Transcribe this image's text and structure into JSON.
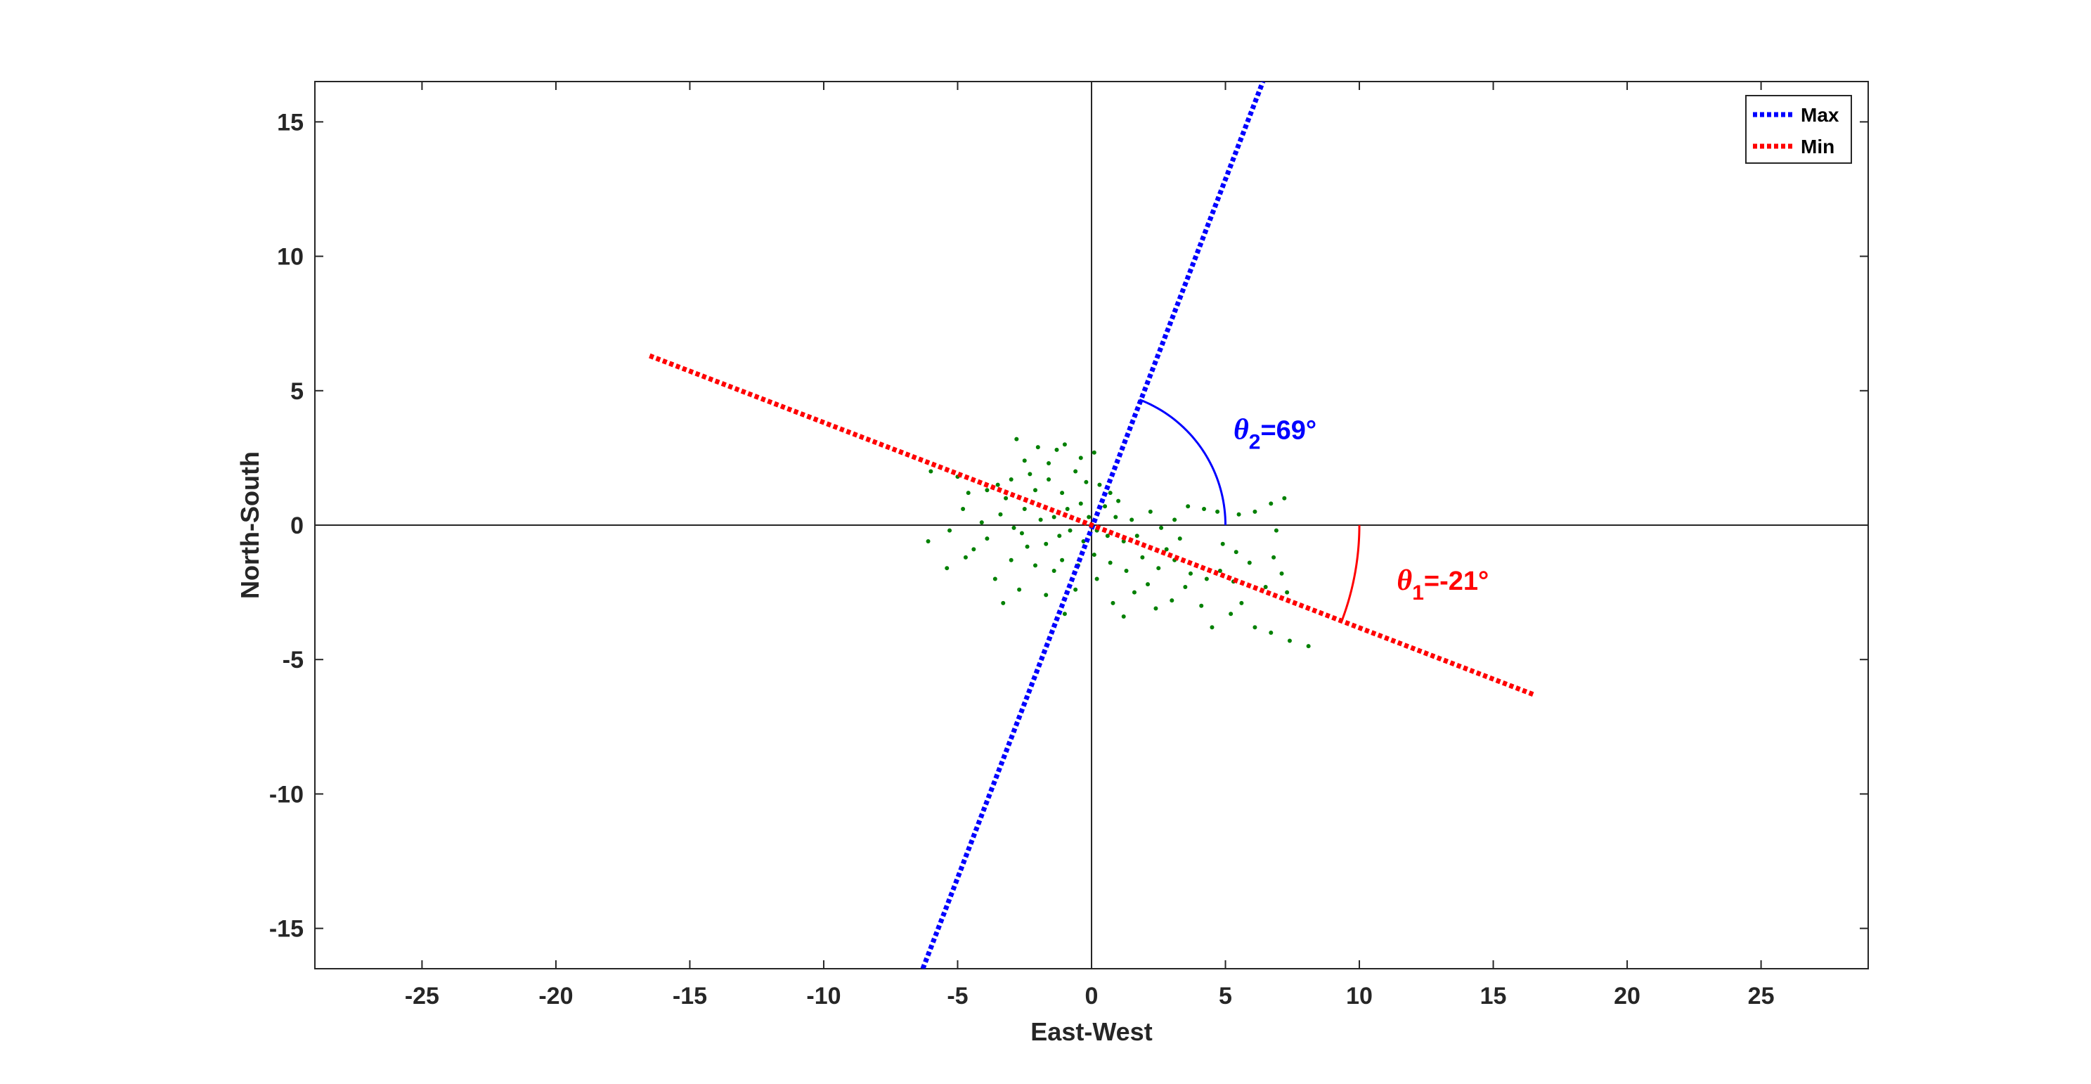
{
  "chart_data": {
    "type": "scatter",
    "title": "",
    "xlabel": "East-West",
    "ylabel": "North-South",
    "xlim": [
      -29,
      29
    ],
    "ylim": [
      -16.5,
      16.5
    ],
    "x_ticks": [
      -25,
      -20,
      -15,
      -10,
      -5,
      0,
      5,
      10,
      15,
      20,
      25
    ],
    "y_ticks": [
      -15,
      -10,
      -5,
      0,
      5,
      10,
      15
    ],
    "x_tick_labels": [
      "-25",
      "-20",
      "-15",
      "-10",
      "-5",
      "0",
      "5",
      "10",
      "15",
      "20",
      "25"
    ],
    "y_tick_labels": [
      "-15",
      "-10",
      "-5",
      "0",
      "5",
      "10",
      "15"
    ],
    "grid": false,
    "legend_position": "top-right",
    "colors": {
      "scatter": "#008000",
      "max": "#0000ff",
      "min": "#ff0000",
      "axis": "#262626"
    },
    "series": [
      {
        "name": "Max",
        "kind": "dotted-line",
        "color": "#0000ff",
        "x": [
          -6.3,
          6.4
        ],
        "y": [
          -16.5,
          16.5
        ]
      },
      {
        "name": "Min",
        "kind": "dotted-line",
        "color": "#ff0000",
        "x": [
          -16.5,
          16.5
        ],
        "y": [
          6.3,
          -6.3
        ]
      }
    ],
    "scatter": {
      "color": "#008000",
      "points": [
        [
          -6.0,
          2.0
        ],
        [
          -5.0,
          1.8
        ],
        [
          -4.6,
          1.2
        ],
        [
          -3.0,
          1.7
        ],
        [
          -2.8,
          3.2
        ],
        [
          -2.5,
          2.4
        ],
        [
          -2.0,
          2.9
        ],
        [
          -1.6,
          2.3
        ],
        [
          -1.3,
          2.8
        ],
        [
          -1.0,
          3.0
        ],
        [
          -0.6,
          2.0
        ],
        [
          -0.4,
          2.5
        ],
        [
          -0.2,
          1.6
        ],
        [
          0.1,
          2.7
        ],
        [
          0.3,
          1.5
        ],
        [
          0.7,
          1.2
        ],
        [
          1.0,
          0.9
        ],
        [
          0.5,
          0.7
        ],
        [
          -0.4,
          0.8
        ],
        [
          -1.1,
          1.2
        ],
        [
          -2.1,
          1.3
        ],
        [
          -3.2,
          1.0
        ],
        [
          -3.9,
          1.3
        ],
        [
          -4.8,
          0.6
        ],
        [
          -5.3,
          -0.2
        ],
        [
          -6.1,
          -0.6
        ],
        [
          -5.4,
          -1.6
        ],
        [
          -4.7,
          -1.2
        ],
        [
          -3.9,
          -0.5
        ],
        [
          -3.6,
          -2.0
        ],
        [
          -3.3,
          -2.9
        ],
        [
          -2.7,
          -2.4
        ],
        [
          -2.1,
          -1.5
        ],
        [
          -1.7,
          -2.6
        ],
        [
          -1.4,
          -1.7
        ],
        [
          -1.0,
          -3.3
        ],
        [
          -0.6,
          -2.4
        ],
        [
          0.2,
          -2.0
        ],
        [
          0.8,
          -2.9
        ],
        [
          1.2,
          -3.4
        ],
        [
          1.6,
          -2.5
        ],
        [
          2.1,
          -2.2
        ],
        [
          2.4,
          -3.1
        ],
        [
          3.0,
          -2.8
        ],
        [
          3.5,
          -2.3
        ],
        [
          4.1,
          -3.0
        ],
        [
          4.5,
          -3.8
        ],
        [
          5.2,
          -3.3
        ],
        [
          5.6,
          -2.9
        ],
        [
          6.1,
          -3.8
        ],
        [
          6.7,
          -4.0
        ],
        [
          7.4,
          -4.3
        ],
        [
          8.1,
          -4.5
        ],
        [
          6.5,
          -2.3
        ],
        [
          7.1,
          -1.8
        ],
        [
          7.3,
          -2.5
        ],
        [
          6.8,
          -1.2
        ],
        [
          5.9,
          -1.4
        ],
        [
          5.4,
          -1.0
        ],
        [
          4.9,
          -0.7
        ],
        [
          5.5,
          0.4
        ],
        [
          6.1,
          0.5
        ],
        [
          6.7,
          0.8
        ],
        [
          7.2,
          1.0
        ],
        [
          6.9,
          -0.2
        ],
        [
          4.7,
          0.5
        ],
        [
          4.2,
          0.6
        ],
        [
          3.6,
          0.7
        ],
        [
          3.1,
          0.2
        ],
        [
          2.6,
          -0.1
        ],
        [
          2.2,
          0.5
        ],
        [
          1.5,
          0.2
        ],
        [
          1.2,
          -0.6
        ],
        [
          0.6,
          -0.4
        ],
        [
          0.2,
          -0.2
        ],
        [
          -0.3,
          -0.6
        ],
        [
          -0.8,
          -0.2
        ],
        [
          -1.4,
          0.3
        ],
        [
          -1.9,
          0.2
        ],
        [
          -2.5,
          0.6
        ],
        [
          -2.9,
          -0.1
        ],
        [
          -3.4,
          0.4
        ],
        [
          -4.1,
          0.1
        ],
        [
          -4.4,
          -0.9
        ],
        [
          -3.0,
          -1.3
        ],
        [
          -2.4,
          -0.8
        ],
        [
          -1.7,
          -0.7
        ],
        [
          -1.1,
          -1.3
        ],
        [
          -0.5,
          -1.5
        ],
        [
          0.1,
          -1.1
        ],
        [
          0.7,
          -1.4
        ],
        [
          1.3,
          -1.7
        ],
        [
          1.9,
          -1.2
        ],
        [
          2.5,
          -1.6
        ],
        [
          3.1,
          -1.3
        ],
        [
          3.7,
          -1.8
        ],
        [
          4.3,
          -2.0
        ],
        [
          4.8,
          -1.7
        ],
        [
          5.3,
          -2.1
        ],
        [
          3.3,
          -0.5
        ],
        [
          2.8,
          -0.9
        ],
        [
          1.7,
          -0.4
        ],
        [
          0.9,
          0.3
        ],
        [
          -0.1,
          0.3
        ],
        [
          -0.9,
          0.6
        ],
        [
          -1.6,
          1.7
        ],
        [
          -2.3,
          1.9
        ],
        [
          -3.5,
          1.5
        ],
        [
          -2.6,
          -0.3
        ],
        [
          -1.2,
          -0.4
        ]
      ]
    },
    "annotations": [
      {
        "symbol": "θ",
        "subscript": "2",
        "text": "=69°",
        "color": "#0000ff",
        "x": 5.3,
        "y": 3.2
      },
      {
        "symbol": "θ",
        "subscript": "1",
        "text": "=-21°",
        "color": "#ff0000",
        "x": 11.4,
        "y": -2.4
      }
    ],
    "arcs": [
      {
        "color": "#0000ff",
        "radius": 5.0,
        "from_deg": 0,
        "to_deg": 69
      },
      {
        "color": "#ff0000",
        "radius": 10.0,
        "from_deg": -21,
        "to_deg": 0
      }
    ]
  }
}
